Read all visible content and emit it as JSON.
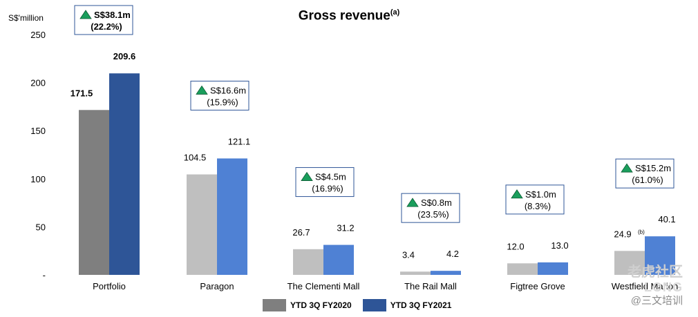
{
  "chart_data": {
    "type": "bar",
    "title": "Gross revenue",
    "title_sup": "(a)",
    "ylabel": "S$'million",
    "ylim": [
      0,
      250
    ],
    "yticks": [
      {
        "value": 0,
        "label": "-"
      },
      {
        "value": 50,
        "label": "50"
      },
      {
        "value": 100,
        "label": "100"
      },
      {
        "value": 150,
        "label": "150"
      },
      {
        "value": 200,
        "label": "200"
      },
      {
        "value": 250,
        "label": "250"
      }
    ],
    "categories": [
      "Portfolio",
      "Paragon",
      "The Clementi Mall",
      "The Rail Mall",
      "Figtree Grove",
      "Westfield Marion"
    ],
    "series": [
      {
        "name": "YTD 3Q FY2020",
        "values": [
          171.5,
          104.5,
          26.7,
          3.4,
          12.0,
          24.9
        ],
        "labels": [
          "171.5",
          "104.5",
          "26.7",
          "3.4",
          "12.0",
          "24.9"
        ],
        "colors": [
          "#7f7f7f",
          "#bfbfbf",
          "#bfbfbf",
          "#bfbfbf",
          "#bfbfbf",
          "#bfbfbf"
        ]
      },
      {
        "name": "YTD 3Q FY2021",
        "values": [
          209.6,
          121.1,
          31.2,
          4.2,
          13.0,
          40.1
        ],
        "labels": [
          "209.6",
          "121.1",
          "31.2",
          "4.2",
          "13.0",
          "40.1"
        ],
        "colors": [
          "#2e5597",
          "#4f81d4",
          "#4f81d4",
          "#4f81d4",
          "#4f81d4",
          "#4f81d4"
        ]
      }
    ],
    "label_notes": [
      "",
      "",
      "",
      "",
      "",
      "(b)"
    ],
    "annotations": [
      {
        "amount": "S$38.1m",
        "pct": "(22.2%)"
      },
      {
        "amount": "S$16.6m",
        "pct": "(15.9%)"
      },
      {
        "amount": "S$4.5m",
        "pct": "(16.9%)"
      },
      {
        "amount": "S$0.8m",
        "pct": "(23.5%)"
      },
      {
        "amount": "S$1.0m",
        "pct": "(8.3%)"
      },
      {
        "amount": "S$15.2m",
        "pct": "(61.0%)"
      }
    ],
    "legend_position": "bottom",
    "grid": false
  },
  "colors": {
    "legend_fy2020": "#7f7f7f",
    "legend_fy2021": "#2e5597",
    "box_border": "#2e5597",
    "up_triangle": "#1a9e5c"
  },
  "watermark": {
    "logo_text": "LONG",
    "brand": "老虎社区",
    "handle": "@三文培训"
  }
}
